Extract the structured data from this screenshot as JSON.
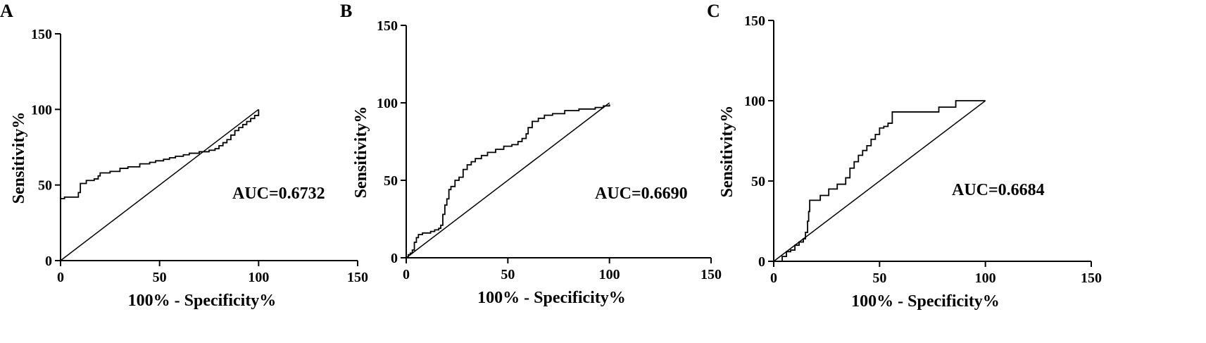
{
  "chart_data": [
    {
      "type": "line",
      "panel": "A",
      "xlabel": "100% - Specificity%",
      "ylabel": "Sensitivity%",
      "xlim": [
        0,
        150
      ],
      "ylim": [
        0,
        150
      ],
      "x_ticks": [
        "0",
        "50",
        "100",
        "150"
      ],
      "y_ticks": [
        "0",
        "50",
        "100",
        "150"
      ],
      "annotation": "AUC=0.6732",
      "series": [
        {
          "x": [
            0,
            0,
            1,
            2,
            8,
            9,
            10,
            13,
            13,
            17,
            19,
            20,
            25,
            30,
            34,
            40,
            45,
            48,
            52,
            55,
            58,
            62,
            65,
            68,
            70,
            72,
            75,
            78,
            80,
            82,
            84,
            86,
            88,
            90,
            92,
            94,
            96,
            98,
            100,
            100
          ],
          "y": [
            38,
            41,
            41,
            42,
            42,
            45,
            51,
            52,
            53,
            54,
            56,
            58,
            59,
            61,
            62,
            64,
            65,
            66,
            67,
            68,
            69,
            70,
            71,
            71,
            72,
            72,
            73,
            74,
            76,
            78,
            80,
            83,
            86,
            88,
            90,
            92,
            94,
            96,
            98,
            100
          ]
        },
        {
          "x": [
            0,
            100
          ],
          "y": [
            0,
            100
          ]
        }
      ]
    },
    {
      "type": "line",
      "panel": "B",
      "xlabel": "100% - Specificity%",
      "ylabel": "Sensitivity%",
      "xlim": [
        0,
        150
      ],
      "ylim": [
        0,
        150
      ],
      "x_ticks": [
        "0",
        "50",
        "100",
        "150"
      ],
      "y_ticks": [
        "0",
        "50",
        "100",
        "150"
      ],
      "annotation": "AUC=0.6690",
      "series": [
        {
          "x": [
            0,
            1,
            2,
            3,
            4,
            5,
            6,
            8,
            12,
            14,
            16,
            17,
            18,
            19,
            20,
            21,
            22,
            24,
            26,
            28,
            30,
            32,
            34,
            37,
            40,
            44,
            48,
            52,
            55,
            57,
            59,
            60,
            62,
            65,
            68,
            72,
            78,
            85,
            93,
            97,
            100
          ],
          "y": [
            0,
            2,
            3,
            5,
            10,
            13,
            15,
            16,
            17,
            18,
            19,
            21,
            28,
            34,
            38,
            44,
            46,
            50,
            52,
            57,
            60,
            62,
            64,
            66,
            68,
            70,
            72,
            73,
            75,
            77,
            80,
            84,
            88,
            90,
            92,
            93,
            95,
            96,
            97,
            98,
            99
          ]
        },
        {
          "x": [
            0,
            100
          ],
          "y": [
            0,
            100
          ]
        }
      ]
    },
    {
      "type": "line",
      "panel": "C",
      "xlabel": "100% - Specificity%",
      "ylabel": "Sensitivity%",
      "xlim": [
        0,
        150
      ],
      "ylim": [
        0,
        150
      ],
      "x_ticks": [
        "0",
        "50",
        "100",
        "150"
      ],
      "y_ticks": [
        "0",
        "50",
        "100",
        "150"
      ],
      "annotation": "AUC=0.6684",
      "series": [
        {
          "x": [
            2,
            4,
            6,
            8,
            10,
            12,
            14,
            15,
            16,
            16.5,
            17,
            18,
            22,
            26,
            30,
            34,
            36,
            38,
            40,
            42,
            44,
            46,
            48,
            50,
            52,
            54,
            56,
            60,
            70,
            78,
            86,
            100
          ],
          "y": [
            0,
            3,
            6,
            7,
            10,
            12,
            14,
            18,
            25,
            31,
            38,
            38,
            41,
            45,
            48,
            52,
            58,
            62,
            66,
            69,
            72,
            76,
            79,
            83,
            84,
            86,
            93,
            93,
            93,
            96,
            100,
            100
          ]
        },
        {
          "x": [
            0,
            100
          ],
          "y": [
            0,
            100
          ]
        }
      ]
    }
  ]
}
